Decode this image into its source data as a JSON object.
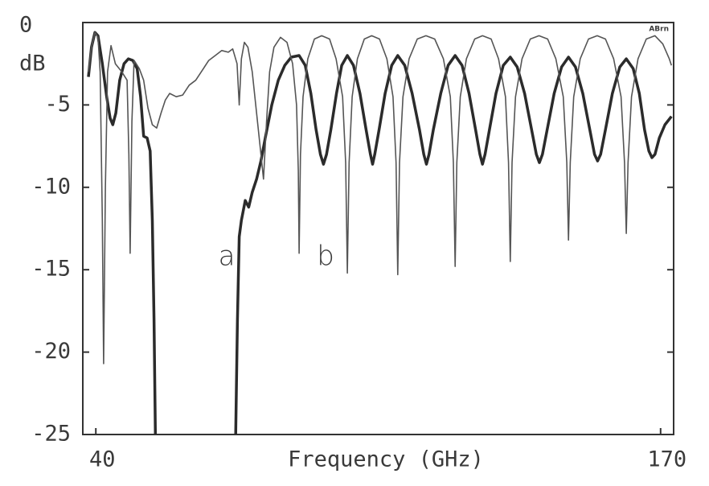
{
  "chart_data": {
    "type": "line",
    "xlabel": "Frequency (GHz)",
    "ylabel": "dB",
    "watermark": "ABrn",
    "xlim": [
      37,
      173
    ],
    "xticks": [
      40,
      170
    ],
    "ylim": [
      -25,
      0
    ],
    "yticks": [
      0,
      -5,
      -10,
      -15,
      -20,
      -25
    ],
    "grid": false,
    "series": [
      {
        "name": "a",
        "color": "#2b2b2b",
        "width": 3.5,
        "x": [
          38.3,
          39.0,
          39.8,
          40.5,
          41.5,
          42.5,
          43.3,
          43.9,
          44.6,
          45.5,
          46.5,
          47.5,
          48.5,
          49.5,
          50.3,
          51.0,
          51.8,
          52.5,
          53.0,
          53.4,
          53.7,
          63,
          72.2,
          72.6,
          73.0,
          73.5,
          74.4,
          75.2,
          76,
          77,
          78,
          79,
          80.5,
          82,
          83.5,
          85,
          86.8,
          88.2,
          89.5,
          90.7,
          91.7,
          92.4,
          93.1,
          94.1,
          95.4,
          96.6,
          97.9,
          99.3,
          100.8,
          102.2,
          103.2,
          103.7,
          104.2,
          105.2,
          106.6,
          108.1,
          109.5,
          111.1,
          112.8,
          114.5,
          115.5,
          116.1,
          116.7,
          117.7,
          119.4,
          121.1,
          122.7,
          124.3,
          125.9,
          127.4,
          128.4,
          129.0,
          129.6,
          130.6,
          132.1,
          133.8,
          135.4,
          137,
          138.7,
          140.3,
          141.4,
          142.1,
          142.8,
          143.9,
          145.5,
          147.2,
          148.8,
          150.4,
          152.1,
          153.7,
          154.8,
          155.5,
          156.2,
          157.3,
          158.9,
          160.6,
          162.1,
          163.7,
          165.1,
          166.3,
          167.3,
          168.0,
          168.7,
          169.7,
          171,
          172.5
        ],
        "values": [
          -3.3,
          -1.5,
          -0.6,
          -0.8,
          -2.5,
          -4.5,
          -5.8,
          -6.2,
          -5.5,
          -3.5,
          -2.5,
          -2.2,
          -2.3,
          -2.8,
          -4.5,
          -6.9,
          -7.0,
          -7.8,
          -12,
          -18,
          -25,
          null,
          -25,
          -18,
          -13,
          -12,
          -10.8,
          -11.2,
          -10.3,
          -9.5,
          -8.4,
          -7,
          -5,
          -3.5,
          -2.6,
          -2.1,
          -2.0,
          -2.6,
          -4.3,
          -6.5,
          -8.0,
          -8.6,
          -8.0,
          -6.5,
          -4.3,
          -2.6,
          -2.0,
          -2.6,
          -4.3,
          -6.5,
          -8.0,
          -8.6,
          -8.0,
          -6.5,
          -4.3,
          -2.6,
          -2.0,
          -2.6,
          -4.3,
          -6.5,
          -8.0,
          -8.6,
          -8.0,
          -6.5,
          -4.3,
          -2.6,
          -2.0,
          -2.6,
          -4.3,
          -6.5,
          -8.0,
          -8.6,
          -8.0,
          -6.5,
          -4.3,
          -2.6,
          -2.1,
          -2.7,
          -4.3,
          -6.5,
          -8.0,
          -8.5,
          -8.0,
          -6.5,
          -4.3,
          -2.7,
          -2.1,
          -2.7,
          -4.3,
          -6.5,
          -8.0,
          -8.4,
          -8.0,
          -6.5,
          -4.3,
          -2.7,
          -2.2,
          -2.8,
          -4.3,
          -6.5,
          -7.8,
          -8.2,
          -8.0,
          -7.0,
          -6.2,
          -5.7
        ]
      },
      {
        "name": "b",
        "color": "#555555",
        "width": 1.6,
        "x": [
          38.3,
          39.0,
          39.8,
          40.5,
          41.0,
          41.5,
          41.8,
          42.2,
          42.7,
          43.5,
          44.5,
          46,
          47.2,
          47.6,
          47.9,
          48.3,
          48.8,
          50,
          51,
          52,
          53,
          54,
          55,
          56,
          57,
          58.5,
          60,
          61.5,
          63,
          64.5,
          66,
          67.5,
          69,
          70.5,
          71.5,
          72.5,
          73,
          73.5,
          74.2,
          75,
          76,
          77,
          78,
          78.6,
          79.3,
          80,
          81,
          82.5,
          84,
          85.3,
          86.2,
          86.6,
          86.8,
          87.1,
          87.7,
          88.8,
          90.3,
          92,
          93.8,
          95.3,
          96.8,
          97.5,
          97.9,
          98.3,
          99.0,
          100.2,
          101.8,
          103.5,
          105.3,
          107,
          108.4,
          109.1,
          109.5,
          109.9,
          110.7,
          112.1,
          114,
          116,
          118,
          120,
          121.6,
          122.3,
          122.7,
          123.1,
          123.9,
          125.3,
          127.2,
          129,
          131,
          132.7,
          134.3,
          135.0,
          135.4,
          135.8,
          136.6,
          138.1,
          140,
          142,
          144,
          145.9,
          147.6,
          148.4,
          148.8,
          149.2,
          150,
          151.5,
          153.4,
          155.4,
          157.3,
          159.2,
          160.9,
          161.7,
          162.1,
          162.5,
          163.3,
          164.8,
          166.7,
          168.7,
          170.5,
          172,
          172.5
        ],
        "values": [
          -3.0,
          -1.5,
          -0.6,
          -0.9,
          -3,
          -12,
          -20.7,
          -10,
          -3,
          -1.4,
          -2.5,
          -3.0,
          -3.5,
          -8,
          -14,
          -6,
          -2.3,
          -2.8,
          -3.5,
          -5.2,
          -6.2,
          -6.4,
          -5.5,
          -4.7,
          -4.3,
          -4.5,
          -4.4,
          -3.8,
          -3.5,
          -2.9,
          -2.3,
          -2.0,
          -1.7,
          -1.8,
          -1.6,
          -2.5,
          -5.0,
          -2.2,
          -1.2,
          -1.5,
          -3,
          -5.5,
          -8,
          -9.5,
          -6,
          -3,
          -1.5,
          -0.9,
          -1.2,
          -2.5,
          -5,
          -9,
          -14,
          -8,
          -4.5,
          -2.2,
          -1.0,
          -0.8,
          -1.0,
          -2.2,
          -4.5,
          -8.5,
          -15.2,
          -8.5,
          -4.5,
          -2.2,
          -1.0,
          -0.8,
          -1.0,
          -2.2,
          -4.5,
          -8.5,
          -15.3,
          -8.5,
          -4.5,
          -2.2,
          -1.0,
          -0.8,
          -1.0,
          -2.2,
          -4.5,
          -8.5,
          -14.8,
          -8.5,
          -4.5,
          -2.2,
          -1.0,
          -0.8,
          -1.0,
          -2.2,
          -4.5,
          -8.5,
          -14.5,
          -8.5,
          -4.5,
          -2.2,
          -1.0,
          -0.8,
          -1.0,
          -2.2,
          -4.5,
          -8.5,
          -13.2,
          -8.5,
          -4.5,
          -2.2,
          -1.0,
          -0.8,
          -1.0,
          -2.2,
          -4.5,
          -8.5,
          -12.8,
          -8.5,
          -4.5,
          -2.2,
          -1.0,
          -0.8,
          -1.3,
          -2.2,
          -2.6
        ]
      }
    ]
  }
}
